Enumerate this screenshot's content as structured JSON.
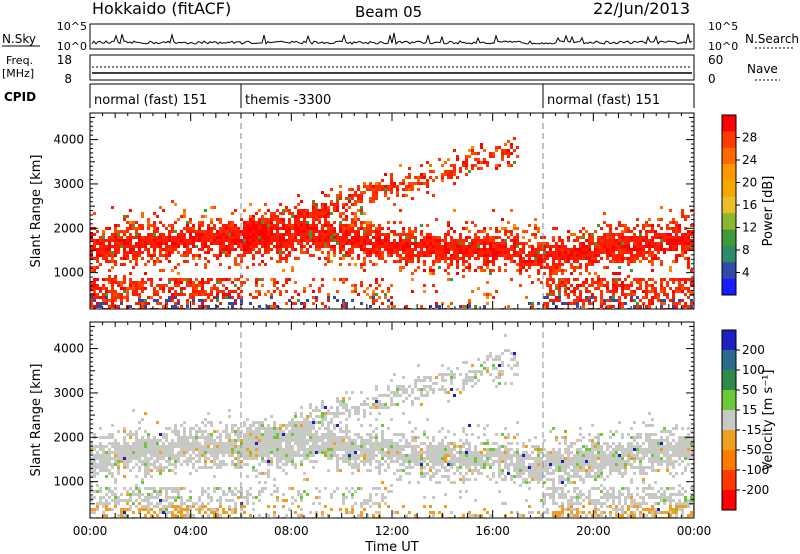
{
  "header": {
    "station": "Hokkaido (fitACF)",
    "beam": "Beam 05",
    "date": "22/Jun/2013"
  },
  "top_panels": {
    "nsky_label": "N.Sky",
    "nsky_ticks": [
      "10^5",
      "10^0"
    ],
    "nsearch_label": "N.Search",
    "nsearch_ticks": [
      "10^5",
      "10^0"
    ],
    "freq_label": "Freq.",
    "freq_unit": "[MHz]",
    "freq_ticks": [
      "18",
      "8"
    ],
    "nave_label": "Nave",
    "nave_ticks": [
      "60",
      "0"
    ],
    "cpid_label": "CPID"
  },
  "cpid_segments": [
    {
      "name": "normal (fast) 151",
      "start_hour": 0
    },
    {
      "name": "themis -3300",
      "start_hour": 6
    },
    {
      "name": "normal (fast) 151",
      "start_hour": 18
    }
  ],
  "chart_data": [
    {
      "type": "heatmap",
      "title": "Power",
      "ylabel": "Slant Range [km]",
      "xlabel": "",
      "xlim_hours": [
        0,
        24
      ],
      "ylim": [
        180,
        4600
      ],
      "yticks": [
        1000,
        2000,
        3000,
        4000
      ],
      "colorbar": {
        "label": "Power [dB]",
        "ticks": [
          "28",
          "24",
          "20",
          "16",
          "12",
          "8",
          "4"
        ],
        "colors": [
          "#ff0000",
          "#ff3a00",
          "#ff6a00",
          "#ff9800",
          "#f5a800",
          "#e8c02a",
          "#8ab830",
          "#3e9a38",
          "#2f8a6a",
          "#2f4aa8",
          "#1a1aff"
        ]
      }
    },
    {
      "type": "heatmap",
      "title": "Velocity",
      "ylabel": "Slant Range [km]",
      "xlabel": "Time UT",
      "xlim_hours": [
        0,
        24
      ],
      "ylim": [
        180,
        4600
      ],
      "yticks": [
        1000,
        2000,
        3000,
        4000
      ],
      "xticks": [
        "00:00",
        "04:00",
        "08:00",
        "12:00",
        "16:00",
        "20:00",
        "00:00"
      ],
      "colorbar": {
        "label": "Velocity [m s⁻¹]",
        "ticks": [
          "200",
          "100",
          "50",
          "15",
          "-15",
          "-50",
          "-100",
          "-200"
        ],
        "colors": [
          "#2020c0",
          "#2a6a8a",
          "#2e8a4a",
          "#6ac83a",
          "#c8c8c4",
          "#f0a020",
          "#ff7a00",
          "#ff3a00",
          "#ff0000"
        ]
      }
    }
  ],
  "colors": {
    "power_core": "#ff2000",
    "power_edge": "#ff8c00",
    "velocity_bg": "#c8c8c4",
    "velocity_neg": "#f0a020",
    "velocity_pos": "#6ac83a"
  }
}
